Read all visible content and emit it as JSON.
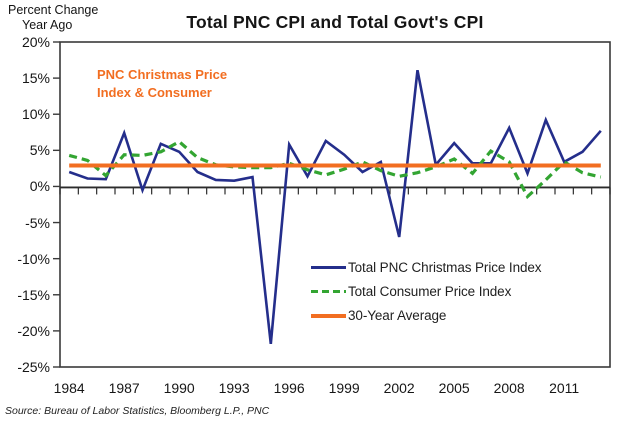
{
  "header": {
    "axis_note_line1": "Percent Change",
    "axis_note_line2": "Year Ago",
    "title": "Total PNC CPI and Total Govt's CPI"
  },
  "annotation": {
    "line1": "PNC Christmas Price",
    "line2": "Index & Consumer"
  },
  "source": "Source: Bureau of Labor Statistics, Bloomberg L.P., PNC",
  "colors": {
    "pnc_line": "#242E8B",
    "cpi_line": "#33A532",
    "average_line": "#F26E21",
    "annotation_text": "#F26E21",
    "axis": "#3a3a3a",
    "text": "#1a1a1a"
  },
  "chart_data": {
    "type": "line",
    "title": "Total PNC CPI and Total Govt's CPI",
    "ylabel": "Percent Change Year Ago",
    "grid": false,
    "legend_position": "inside-lower-right",
    "ylim": [
      -25,
      20
    ],
    "y_tick_labels": [
      "20%",
      "15%",
      "10%",
      "5%",
      "0%",
      "-5%",
      "-10%",
      "-15%",
      "-20%",
      "-25%"
    ],
    "y_tick_values": [
      20,
      15,
      10,
      5,
      0,
      -5,
      -10,
      -15,
      -20,
      -25
    ],
    "x": [
      1984,
      1985,
      1986,
      1987,
      1988,
      1989,
      1990,
      1991,
      1992,
      1993,
      1994,
      1995,
      1996,
      1997,
      1998,
      1999,
      2000,
      2001,
      2002,
      2003,
      2004,
      2005,
      2006,
      2007,
      2008,
      2009,
      2010,
      2011,
      2012,
      2013
    ],
    "x_tick_labels": [
      "1984",
      "1987",
      "1990",
      "1993",
      "1996",
      "1999",
      "2002",
      "2005",
      "2008",
      "2011"
    ],
    "x_tick_step": 3,
    "series": [
      {
        "name": "Total PNC Christmas Price Index",
        "style": "solid",
        "color": "#242E8B",
        "width": 2.6,
        "values": [
          2.0,
          1.1,
          1.0,
          7.4,
          -0.5,
          5.9,
          4.8,
          2.0,
          0.9,
          0.8,
          1.3,
          -21.8,
          5.8,
          1.4,
          6.3,
          4.4,
          2.0,
          3.4,
          -7.0,
          16.1,
          3.0,
          6.0,
          3.2,
          3.2,
          8.1,
          1.8,
          9.2,
          3.4,
          4.8,
          7.7
        ]
      },
      {
        "name": "Total Consumer Price Index",
        "style": "dashed",
        "color": "#33A532",
        "width": 3.2,
        "values": [
          4.3,
          3.6,
          1.5,
          4.4,
          4.3,
          4.8,
          6.2,
          4.0,
          3.0,
          2.7,
          2.6,
          2.6,
          3.2,
          2.3,
          1.6,
          2.4,
          3.4,
          2.2,
          1.4,
          1.9,
          2.7,
          3.8,
          1.8,
          4.9,
          3.4,
          -1.4,
          0.9,
          3.4,
          1.9,
          1.3
        ]
      },
      {
        "name": "30-Year Average",
        "style": "solid",
        "color": "#F26E21",
        "width": 4,
        "constant": 2.9,
        "values": [
          2.9,
          2.9,
          2.9,
          2.9,
          2.9,
          2.9,
          2.9,
          2.9,
          2.9,
          2.9,
          2.9,
          2.9,
          2.9,
          2.9,
          2.9,
          2.9,
          2.9,
          2.9,
          2.9,
          2.9,
          2.9,
          2.9,
          2.9,
          2.9,
          2.9,
          2.9,
          2.9,
          2.9,
          2.9,
          2.9
        ]
      }
    ]
  }
}
